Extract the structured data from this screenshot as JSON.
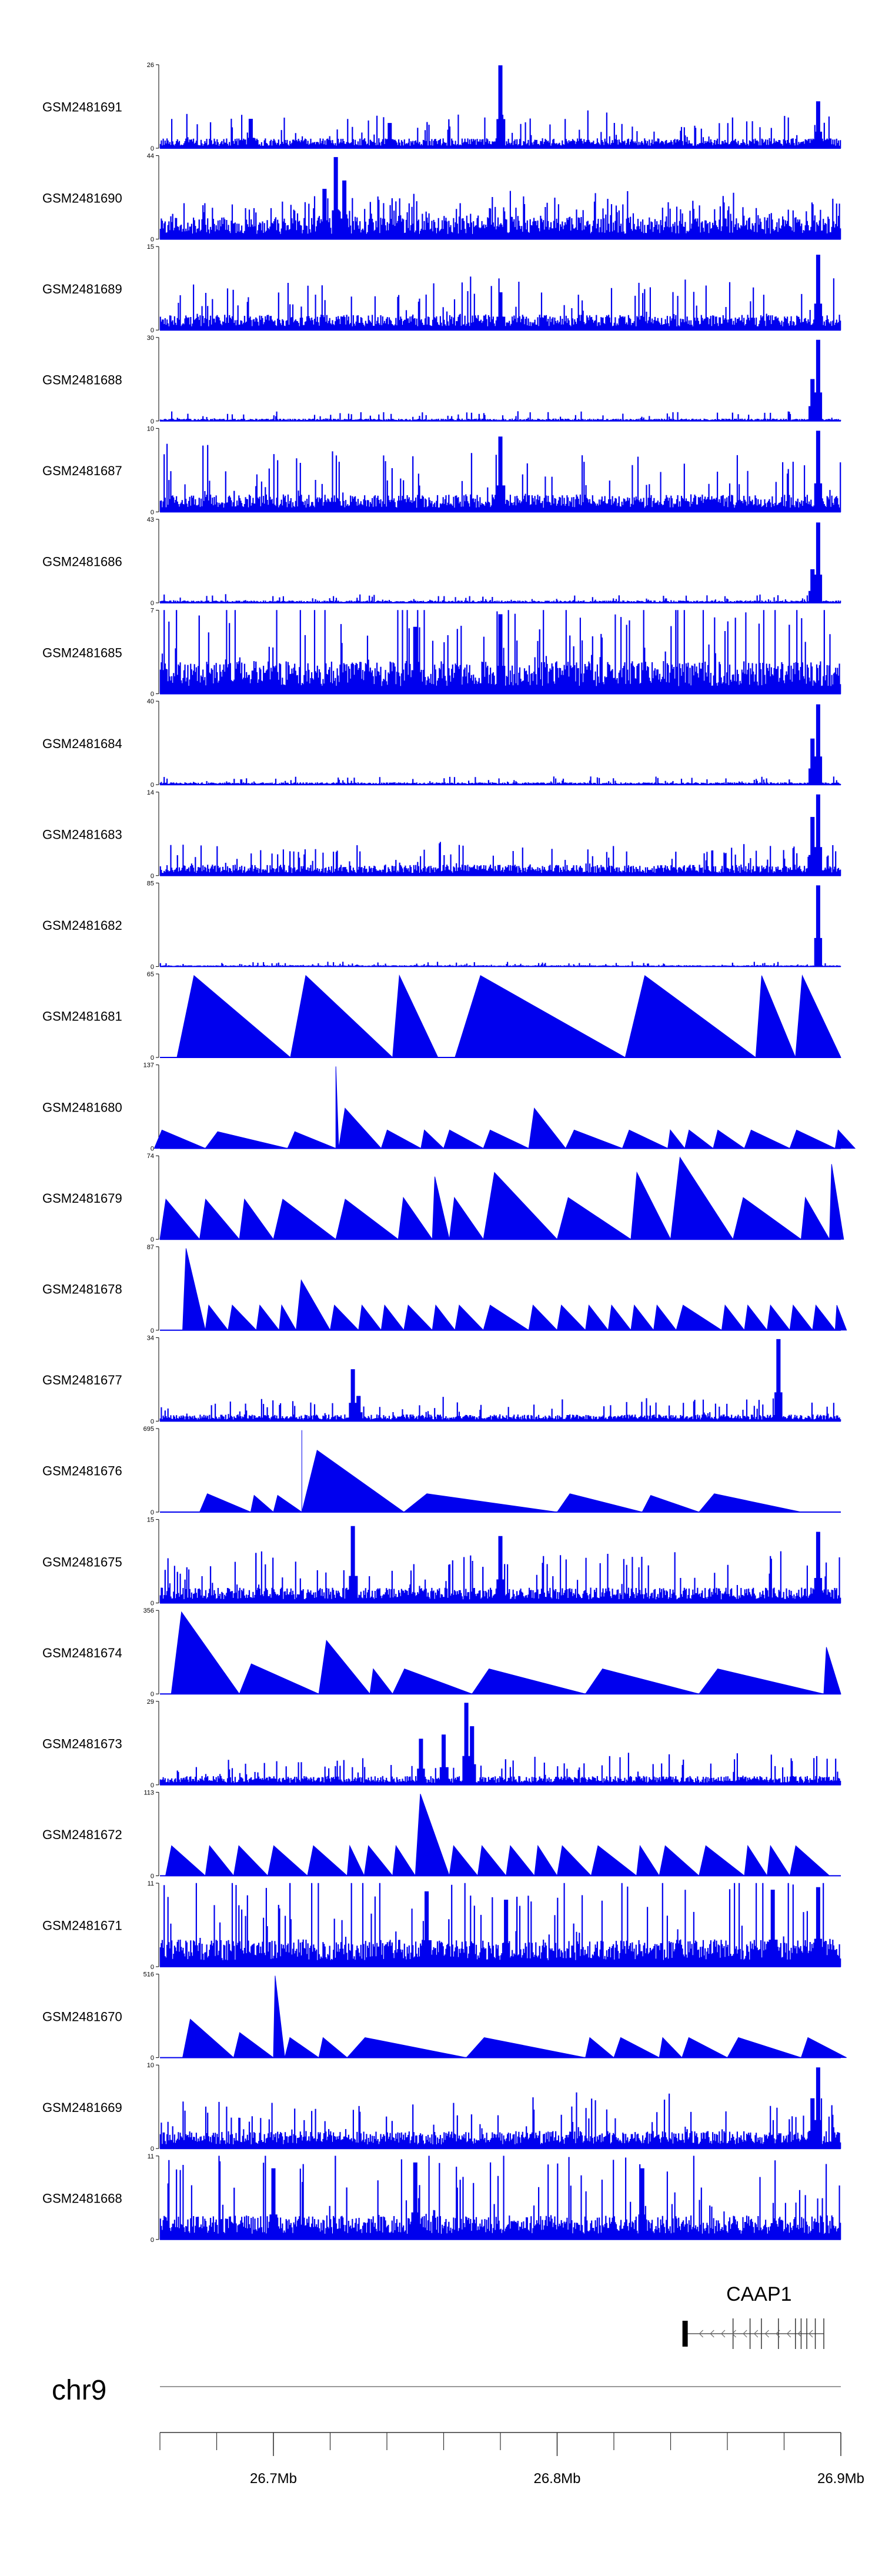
{
  "chart_data": {
    "type": "area",
    "series_color": "#0000EE",
    "chromosome": "chr9",
    "x_range": [
      26.66,
      26.9
    ],
    "x_ticks": [
      "26.7Mb",
      "26.8Mb",
      "26.9Mb"
    ],
    "gene": {
      "name": "CAAP1",
      "start": 26.845,
      "end": 26.894,
      "strand": "-"
    },
    "tracks": [
      {
        "name": "GSM2481691",
        "ymax": "26",
        "ymin": "0",
        "style": "noise",
        "base": 0.09,
        "amp": 0.22,
        "peaks": [
          [
            26.692,
            0.35
          ],
          [
            26.741,
            0.3
          ],
          [
            26.78,
            0.99
          ],
          [
            26.892,
            0.56
          ]
        ]
      },
      {
        "name": "GSM2481690",
        "ymax": "44",
        "ymin": "0",
        "style": "dense",
        "base": 0.2,
        "amp": 0.22,
        "peaks": [
          [
            26.722,
            0.98
          ],
          [
            26.718,
            0.6
          ],
          [
            26.725,
            0.7
          ]
        ]
      },
      {
        "name": "GSM2481689",
        "ymax": "15",
        "ymin": "0",
        "style": "noise",
        "base": 0.14,
        "amp": 0.3,
        "peaks": [
          [
            26.892,
            0.9
          ],
          [
            26.78,
            0.45
          ]
        ]
      },
      {
        "name": "GSM2481688",
        "ymax": "30",
        "ymin": "0",
        "style": "noise",
        "base": 0.02,
        "amp": 0.06,
        "peaks": [
          [
            26.892,
            0.97
          ],
          [
            26.89,
            0.5
          ]
        ]
      },
      {
        "name": "GSM2481687",
        "ymax": "10",
        "ymin": "0",
        "style": "noise",
        "base": 0.16,
        "amp": 0.42,
        "peaks": [
          [
            26.78,
            0.9
          ],
          [
            26.892,
            0.97
          ]
        ]
      },
      {
        "name": "GSM2481686",
        "ymax": "43",
        "ymin": "0",
        "style": "noise",
        "base": 0.02,
        "amp": 0.05,
        "peaks": [
          [
            26.892,
            0.96
          ],
          [
            26.89,
            0.4
          ]
        ]
      },
      {
        "name": "GSM2481685",
        "ymax": "7",
        "ymin": "0",
        "style": "noise",
        "base": 0.3,
        "amp": 0.6,
        "peaks": [
          [
            26.78,
            0.95
          ],
          [
            26.75,
            0.8
          ]
        ]
      },
      {
        "name": "GSM2481684",
        "ymax": "40",
        "ymin": "0",
        "style": "noise",
        "base": 0.02,
        "amp": 0.05,
        "peaks": [
          [
            26.892,
            0.96
          ],
          [
            26.89,
            0.55
          ]
        ]
      },
      {
        "name": "GSM2481683",
        "ymax": "14",
        "ymin": "0",
        "style": "noise",
        "base": 0.1,
        "amp": 0.18,
        "peaks": [
          [
            26.892,
            0.97
          ],
          [
            26.89,
            0.7
          ]
        ]
      },
      {
        "name": "GSM2481682",
        "ymax": "85",
        "ymin": "0",
        "style": "noise",
        "base": 0.01,
        "amp": 0.03,
        "peaks": [
          [
            26.892,
            0.97
          ]
        ]
      },
      {
        "name": "GSM2481681",
        "ymax": "65",
        "ymin": "0",
        "style": "tri",
        "tris": [
          [
            26.666,
            26.706,
            0.98
          ],
          [
            26.706,
            26.742,
            0.98
          ],
          [
            26.742,
            26.758,
            0.98
          ],
          [
            26.764,
            26.824,
            0.98
          ],
          [
            26.824,
            26.87,
            0.98
          ],
          [
            26.87,
            26.884,
            0.98
          ],
          [
            26.884,
            26.9,
            0.98
          ]
        ]
      },
      {
        "name": "GSM2481680",
        "ymax": "137",
        "ymin": "0",
        "style": "tri",
        "tris": [
          [
            26.658,
            26.676,
            0.22
          ],
          [
            26.676,
            26.705,
            0.2
          ],
          [
            26.705,
            26.722,
            0.2
          ],
          [
            26.722,
            26.723,
            0.98
          ],
          [
            26.723,
            26.738,
            0.48
          ],
          [
            26.738,
            26.752,
            0.22
          ],
          [
            26.752,
            26.76,
            0.22
          ],
          [
            26.76,
            26.774,
            0.22
          ],
          [
            26.774,
            26.79,
            0.22
          ],
          [
            26.79,
            26.803,
            0.48
          ],
          [
            26.803,
            26.823,
            0.22
          ],
          [
            26.823,
            26.839,
            0.22
          ],
          [
            26.839,
            26.845,
            0.22
          ],
          [
            26.845,
            26.855,
            0.22
          ],
          [
            26.855,
            26.866,
            0.22
          ],
          [
            26.866,
            26.882,
            0.22
          ],
          [
            26.882,
            26.898,
            0.22
          ],
          [
            26.898,
            26.905,
            0.22
          ]
        ]
      },
      {
        "name": "GSM2481679",
        "ymax": "74",
        "ymin": "0",
        "style": "tri",
        "tris": [
          [
            26.66,
            26.674,
            0.48
          ],
          [
            26.674,
            26.688,
            0.48
          ],
          [
            26.688,
            26.7,
            0.48
          ],
          [
            26.7,
            26.722,
            0.48
          ],
          [
            26.722,
            26.744,
            0.48
          ],
          [
            26.744,
            26.756,
            0.5
          ],
          [
            26.756,
            26.762,
            0.75
          ],
          [
            26.762,
            26.774,
            0.5
          ],
          [
            26.774,
            26.8,
            0.8
          ],
          [
            26.8,
            26.826,
            0.5
          ],
          [
            26.826,
            26.84,
            0.8
          ],
          [
            26.84,
            26.862,
            0.98
          ],
          [
            26.862,
            26.886,
            0.5
          ],
          [
            26.886,
            26.896,
            0.5
          ],
          [
            26.896,
            26.901,
            0.9
          ]
        ]
      },
      {
        "name": "GSM2481678",
        "ymax": "87",
        "ymin": "0",
        "style": "tri",
        "tris": [
          [
            26.668,
            26.676,
            0.98
          ],
          [
            26.676,
            26.684,
            0.3
          ],
          [
            26.684,
            26.694,
            0.3
          ],
          [
            26.694,
            26.702,
            0.3
          ],
          [
            26.702,
            26.708,
            0.3
          ],
          [
            26.708,
            26.72,
            0.6
          ],
          [
            26.72,
            26.73,
            0.3
          ],
          [
            26.73,
            26.738,
            0.3
          ],
          [
            26.738,
            26.746,
            0.3
          ],
          [
            26.746,
            26.756,
            0.3
          ],
          [
            26.756,
            26.764,
            0.3
          ],
          [
            26.764,
            26.774,
            0.3
          ],
          [
            26.774,
            26.79,
            0.3
          ],
          [
            26.79,
            26.8,
            0.3
          ],
          [
            26.8,
            26.81,
            0.3
          ],
          [
            26.81,
            26.818,
            0.3
          ],
          [
            26.818,
            26.826,
            0.3
          ],
          [
            26.826,
            26.834,
            0.3
          ],
          [
            26.834,
            26.842,
            0.3
          ],
          [
            26.842,
            26.858,
            0.3
          ],
          [
            26.858,
            26.866,
            0.3
          ],
          [
            26.866,
            26.874,
            0.3
          ],
          [
            26.874,
            26.882,
            0.3
          ],
          [
            26.882,
            26.89,
            0.3
          ],
          [
            26.89,
            26.898,
            0.3
          ],
          [
            26.898,
            26.902,
            0.3
          ]
        ]
      },
      {
        "name": "GSM2481677",
        "ymax": "34",
        "ymin": "0",
        "style": "noise",
        "base": 0.06,
        "amp": 0.14,
        "peaks": [
          [
            26.728,
            0.62
          ],
          [
            26.878,
            0.98
          ],
          [
            26.73,
            0.3
          ]
        ]
      },
      {
        "name": "GSM2481676",
        "ymax": "695",
        "ymin": "0",
        "style": "tri",
        "tris": [
          [
            26.674,
            26.692,
            0.22
          ],
          [
            26.692,
            26.7,
            0.2
          ],
          [
            26.7,
            26.71,
            0.2
          ],
          [
            26.71,
            26.71,
            0.98
          ],
          [
            26.71,
            26.746,
            0.74
          ],
          [
            26.746,
            26.8,
            0.22
          ],
          [
            26.8,
            26.83,
            0.22
          ],
          [
            26.83,
            26.85,
            0.2
          ],
          [
            26.85,
            26.886,
            0.22
          ]
        ]
      },
      {
        "name": "GSM2481675",
        "ymax": "15",
        "ymin": "0",
        "style": "noise",
        "base": 0.14,
        "amp": 0.32,
        "peaks": [
          [
            26.728,
            0.92
          ],
          [
            26.78,
            0.8
          ],
          [
            26.892,
            0.85
          ]
        ]
      },
      {
        "name": "GSM2481674",
        "ymax": "356",
        "ymin": "0",
        "style": "tri",
        "tris": [
          [
            26.664,
            26.688,
            0.98
          ],
          [
            26.688,
            26.716,
            0.36
          ],
          [
            26.716,
            26.734,
            0.64
          ],
          [
            26.734,
            26.742,
            0.3
          ],
          [
            26.742,
            26.77,
            0.3
          ],
          [
            26.77,
            26.81,
            0.3
          ],
          [
            26.81,
            26.85,
            0.3
          ],
          [
            26.85,
            26.894,
            0.3
          ],
          [
            26.894,
            26.9,
            0.56
          ]
        ]
      },
      {
        "name": "GSM2481673",
        "ymax": "29",
        "ymin": "0",
        "style": "noise",
        "base": 0.08,
        "amp": 0.18,
        "peaks": [
          [
            26.768,
            0.98
          ],
          [
            26.76,
            0.6
          ],
          [
            26.752,
            0.55
          ],
          [
            26.77,
            0.7
          ]
        ]
      },
      {
        "name": "GSM2481672",
        "ymax": "113",
        "ymin": "0",
        "style": "tri",
        "tris": [
          [
            26.662,
            26.676,
            0.36
          ],
          [
            26.676,
            26.686,
            0.36
          ],
          [
            26.686,
            26.698,
            0.36
          ],
          [
            26.698,
            26.712,
            0.36
          ],
          [
            26.712,
            26.726,
            0.36
          ],
          [
            26.726,
            26.732,
            0.36
          ],
          [
            26.732,
            26.742,
            0.36
          ],
          [
            26.742,
            26.75,
            0.36
          ],
          [
            26.75,
            26.762,
            0.98
          ],
          [
            26.762,
            26.772,
            0.36
          ],
          [
            26.772,
            26.782,
            0.36
          ],
          [
            26.782,
            26.792,
            0.36
          ],
          [
            26.792,
            26.8,
            0.36
          ],
          [
            26.8,
            26.812,
            0.36
          ],
          [
            26.812,
            26.828,
            0.36
          ],
          [
            26.828,
            26.836,
            0.36
          ],
          [
            26.836,
            26.85,
            0.36
          ],
          [
            26.85,
            26.866,
            0.36
          ],
          [
            26.866,
            26.874,
            0.36
          ],
          [
            26.874,
            26.882,
            0.36
          ],
          [
            26.882,
            26.896,
            0.36
          ]
        ]
      },
      {
        "name": "GSM2481671",
        "ymax": "11",
        "ymin": "0",
        "style": "noise",
        "base": 0.25,
        "amp": 0.65,
        "peaks": [
          [
            26.754,
            0.9
          ],
          [
            26.782,
            0.8
          ],
          [
            26.876,
            0.92
          ],
          [
            26.892,
            0.95
          ]
        ]
      },
      {
        "name": "GSM2481670",
        "ymax": "516",
        "ymin": "0",
        "style": "tri",
        "tris": [
          [
            26.668,
            26.686,
            0.46
          ],
          [
            26.686,
            26.7,
            0.3
          ],
          [
            26.7,
            26.704,
            0.98
          ],
          [
            26.704,
            26.716,
            0.24
          ],
          [
            26.716,
            26.726,
            0.24
          ],
          [
            26.726,
            26.768,
            0.24
          ],
          [
            26.768,
            26.81,
            0.24
          ],
          [
            26.81,
            26.82,
            0.24
          ],
          [
            26.82,
            26.836,
            0.24
          ],
          [
            26.836,
            26.844,
            0.24
          ],
          [
            26.844,
            26.86,
            0.24
          ],
          [
            26.86,
            26.886,
            0.24
          ],
          [
            26.886,
            26.902,
            0.24
          ]
        ]
      },
      {
        "name": "GSM2481669",
        "ymax": "10",
        "ymin": "0",
        "style": "noise",
        "base": 0.16,
        "amp": 0.3,
        "peaks": [
          [
            26.892,
            0.97
          ],
          [
            26.89,
            0.6
          ]
        ]
      },
      {
        "name": "GSM2481668",
        "ymax": "11",
        "ymin": "0",
        "style": "noise",
        "base": 0.22,
        "amp": 0.55,
        "peaks": [
          [
            26.75,
            0.92
          ],
          [
            26.83,
            0.85
          ],
          [
            26.7,
            0.85
          ]
        ]
      }
    ]
  }
}
